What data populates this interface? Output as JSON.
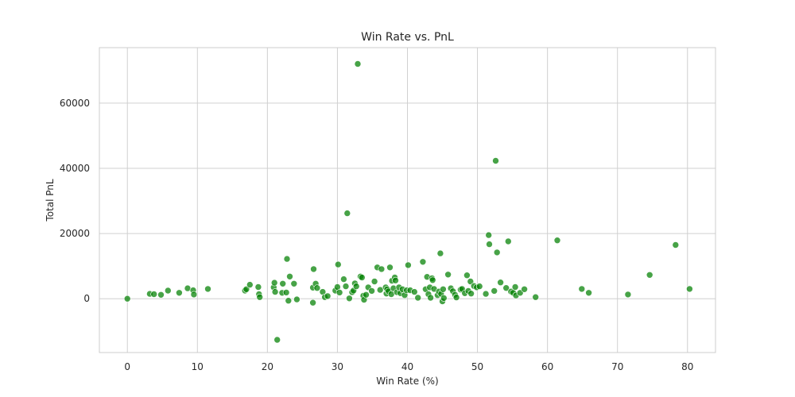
{
  "chart_data": {
    "type": "scatter",
    "title": "Win Rate vs. PnL",
    "xlabel": "Win Rate (%)",
    "ylabel": "Total PnL",
    "xlim": [
      -4,
      84
    ],
    "ylim": [
      -16500,
      77000
    ],
    "xticks": [
      0,
      10,
      20,
      30,
      40,
      50,
      60,
      70,
      80
    ],
    "yticks": [
      0,
      20000,
      40000,
      60000
    ],
    "xtick_labels": [
      "0",
      "10",
      "20",
      "30",
      "40",
      "50",
      "60",
      "70",
      "80"
    ],
    "ytick_labels": [
      "0",
      "20000",
      "40000",
      "60000"
    ],
    "grid": true,
    "legend": "none",
    "point_color": "#008000",
    "points": [
      [
        0,
        0
      ],
      [
        3.2,
        1500
      ],
      [
        3.8,
        1400
      ],
      [
        4.8,
        1200
      ],
      [
        5.8,
        2500
      ],
      [
        7.4,
        1800
      ],
      [
        8.6,
        3200
      ],
      [
        9.4,
        2600
      ],
      [
        9.5,
        1300
      ],
      [
        11.5,
        3000
      ],
      [
        16.8,
        2500
      ],
      [
        17.0,
        2900
      ],
      [
        17.5,
        4300
      ],
      [
        18.7,
        3600
      ],
      [
        18.8,
        1400
      ],
      [
        18.9,
        500
      ],
      [
        20.9,
        3500
      ],
      [
        21.0,
        4900
      ],
      [
        21.1,
        2100
      ],
      [
        21.4,
        -12600
      ],
      [
        22.2,
        4600
      ],
      [
        22.1,
        1800
      ],
      [
        22.7,
        1900
      ],
      [
        22.8,
        12200
      ],
      [
        23.0,
        -600
      ],
      [
        23.2,
        6800
      ],
      [
        23.8,
        4600
      ],
      [
        24.2,
        -200
      ],
      [
        26.5,
        3400
      ],
      [
        26.6,
        9100
      ],
      [
        26.5,
        -1200
      ],
      [
        26.9,
        4600
      ],
      [
        27.1,
        3300
      ],
      [
        27.9,
        2100
      ],
      [
        28.2,
        500
      ],
      [
        28.6,
        800
      ],
      [
        29.7,
        2500
      ],
      [
        30.0,
        3600
      ],
      [
        30.1,
        10500
      ],
      [
        30.3,
        1900
      ],
      [
        30.9,
        6000
      ],
      [
        31.2,
        3800
      ],
      [
        31.4,
        26200
      ],
      [
        31.7,
        100
      ],
      [
        32.1,
        2000
      ],
      [
        32.3,
        2500
      ],
      [
        32.5,
        4700
      ],
      [
        32.7,
        3800
      ],
      [
        32.9,
        72000
      ],
      [
        33.3,
        6800
      ],
      [
        33.5,
        6500
      ],
      [
        33.7,
        900
      ],
      [
        33.8,
        -300
      ],
      [
        34.1,
        1200
      ],
      [
        34.4,
        3500
      ],
      [
        34.9,
        2400
      ],
      [
        35.3,
        5300
      ],
      [
        35.7,
        9600
      ],
      [
        36.1,
        2700
      ],
      [
        36.3,
        9100
      ],
      [
        36.9,
        3500
      ],
      [
        37.0,
        1600
      ],
      [
        37.1,
        2900
      ],
      [
        37.3,
        2300
      ],
      [
        37.5,
        9600
      ],
      [
        37.7,
        1400
      ],
      [
        37.8,
        5500
      ],
      [
        38.0,
        3200
      ],
      [
        38.2,
        6500
      ],
      [
        38.3,
        5600
      ],
      [
        38.5,
        2000
      ],
      [
        38.8,
        3500
      ],
      [
        39.0,
        1700
      ],
      [
        39.3,
        2900
      ],
      [
        39.6,
        1100
      ],
      [
        39.9,
        2600
      ],
      [
        40.1,
        10300
      ],
      [
        40.4,
        2600
      ],
      [
        41.0,
        2100
      ],
      [
        41.5,
        300
      ],
      [
        42.2,
        11300
      ],
      [
        42.6,
        2900
      ],
      [
        42.8,
        6700
      ],
      [
        43.0,
        1400
      ],
      [
        43.2,
        3500
      ],
      [
        43.3,
        300
      ],
      [
        43.5,
        6300
      ],
      [
        43.6,
        5700
      ],
      [
        43.8,
        3000
      ],
      [
        44.3,
        1100
      ],
      [
        44.5,
        2200
      ],
      [
        44.7,
        13900
      ],
      [
        44.8,
        1500
      ],
      [
        45.0,
        -800
      ],
      [
        45.1,
        2900
      ],
      [
        45.2,
        200
      ],
      [
        45.8,
        7400
      ],
      [
        46.2,
        3200
      ],
      [
        46.5,
        2300
      ],
      [
        46.8,
        1200
      ],
      [
        47.0,
        400
      ],
      [
        47.6,
        2800
      ],
      [
        47.8,
        3000
      ],
      [
        48.2,
        1700
      ],
      [
        48.5,
        7200
      ],
      [
        48.7,
        2400
      ],
      [
        49.0,
        5300
      ],
      [
        49.1,
        1600
      ],
      [
        49.5,
        3900
      ],
      [
        49.9,
        3500
      ],
      [
        50.3,
        3800
      ],
      [
        51.2,
        1500
      ],
      [
        51.6,
        19500
      ],
      [
        51.7,
        16700
      ],
      [
        52.4,
        2400
      ],
      [
        52.6,
        42300
      ],
      [
        52.8,
        14200
      ],
      [
        53.3,
        5000
      ],
      [
        54.1,
        3300
      ],
      [
        54.4,
        17600
      ],
      [
        54.8,
        2200
      ],
      [
        55.1,
        1800
      ],
      [
        55.4,
        3600
      ],
      [
        55.5,
        1000
      ],
      [
        56.1,
        1800
      ],
      [
        56.7,
        2900
      ],
      [
        58.3,
        500
      ],
      [
        61.4,
        17900
      ],
      [
        64.9,
        3000
      ],
      [
        65.9,
        1800
      ],
      [
        71.5,
        1300
      ],
      [
        74.6,
        7300
      ],
      [
        78.3,
        16500
      ],
      [
        80.3,
        3000
      ]
    ]
  }
}
